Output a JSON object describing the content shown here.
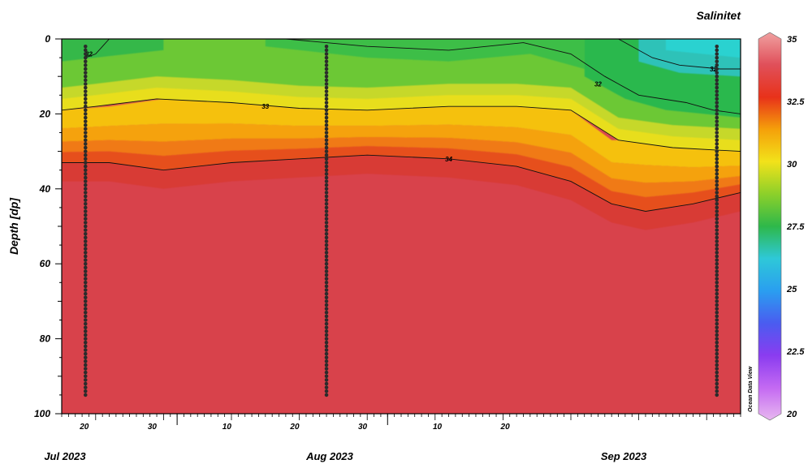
{
  "chart_data": {
    "type": "heatmap",
    "title": "Salinitet",
    "ylabel": "Depth [dp]",
    "xlabel": "",
    "ylim": [
      0,
      100
    ],
    "y_inverted": true,
    "yticks": [
      "0",
      "20",
      "40",
      "60",
      "80",
      "100"
    ],
    "x_day_ticks": [
      "20",
      "30",
      "10",
      "20",
      "30",
      "10",
      "20"
    ],
    "x_months": [
      "Jul 2023",
      "Aug 2023",
      "Sep 2023"
    ],
    "colorbar": {
      "min": 20,
      "max": 35,
      "ticks": [
        "35",
        "32.5",
        "30",
        "27.5",
        "25",
        "22.5",
        "20"
      ],
      "colors": [
        "#e8b8f0",
        "#c46af2",
        "#8a3cf0",
        "#4a5cf0",
        "#2a9ef0",
        "#2ec8d8",
        "#2eb84a",
        "#8cd02a",
        "#f2e21a",
        "#f5a00a",
        "#e8321a",
        "#e0505a",
        "#f0a0a0"
      ]
    },
    "contours": [
      {
        "label": "32",
        "points": [
          [
            18.5,
            5
          ],
          [
            20,
            4
          ],
          [
            22,
            0
          ]
        ],
        "label_at": [
          19,
          4
        ]
      },
      {
        "label": "32",
        "points": [
          [
            48,
            0
          ],
          [
            60,
            2
          ],
          [
            72,
            3
          ],
          [
            83,
            1
          ],
          [
            90,
            4
          ],
          [
            95,
            10
          ],
          [
            100,
            15
          ],
          [
            107,
            17
          ],
          [
            111,
            19
          ],
          [
            115,
            20
          ]
        ],
        "label_at": [
          94,
          12
        ]
      },
      {
        "label": "32",
        "points": [
          [
            97,
            0
          ],
          [
            102,
            5
          ],
          [
            106,
            7
          ],
          [
            112,
            8
          ],
          [
            115,
            8
          ]
        ],
        "label_at": [
          111,
          8
        ]
      },
      {
        "label": "33",
        "points": [
          [
            15,
            19
          ],
          [
            20,
            18
          ],
          [
            29,
            16
          ],
          [
            40,
            17
          ],
          [
            50,
            18.5
          ],
          [
            60,
            19
          ],
          [
            72,
            18
          ],
          [
            82,
            18
          ],
          [
            90,
            19
          ],
          [
            97,
            27
          ],
          [
            105,
            29
          ],
          [
            115,
            30
          ]
        ],
        "label_at": [
          45,
          18
        ]
      },
      {
        "label": "34",
        "points": [
          [
            15,
            33
          ],
          [
            22,
            33
          ],
          [
            30,
            35
          ],
          [
            40,
            33
          ],
          [
            50,
            32
          ],
          [
            60,
            31
          ],
          [
            72,
            32
          ],
          [
            82,
            34
          ],
          [
            90,
            38
          ],
          [
            96,
            44
          ],
          [
            101,
            46
          ],
          [
            108,
            44
          ],
          [
            115,
            41
          ]
        ],
        "label_at": [
          72,
          32
        ]
      }
    ],
    "stations": [
      {
        "day": 18.5,
        "depth_from": 2,
        "depth_to": 95
      },
      {
        "day": 54,
        "depth_from": 2,
        "depth_to": 95
      },
      {
        "day": 111.5,
        "depth_from": 2,
        "depth_to": 95
      }
    ],
    "x_day_range": [
      15,
      115
    ]
  },
  "watermark": "Ocean Data View"
}
